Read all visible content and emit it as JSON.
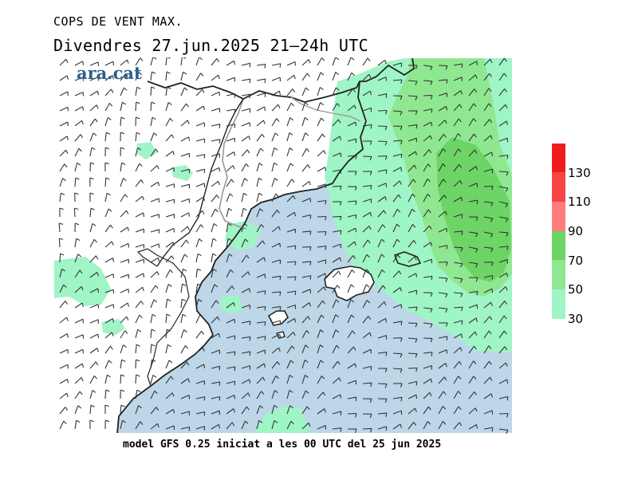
{
  "header": {
    "product": "COPS DE VENT MAX.",
    "valid_time": "Divendres  27.jun.2025 21‒24h UTC"
  },
  "brand": {
    "logo_text": "ara.cat"
  },
  "footer": {
    "model_info": "model GFS 0.25 iniciat a les 00 UTC del 25 jun 2025"
  },
  "map": {
    "colors": {
      "sea": "#bdd7e9",
      "land": "#ffffff",
      "coast": "#222222",
      "border": "#aaaaaa",
      "barb": "#333333"
    }
  },
  "legend": {
    "bins": [
      {
        "label": "30",
        "color": "#9ff5c5"
      },
      {
        "label": "50",
        "color": "#8fe891"
      },
      {
        "label": "70",
        "color": "#6dd466"
      },
      {
        "label": "90",
        "color": "#ff7d7d"
      },
      {
        "label": "110",
        "color": "#f54545"
      },
      {
        "label": "130",
        "color": "#ee1d1d"
      }
    ],
    "top_color": "#ee1d1d"
  }
}
